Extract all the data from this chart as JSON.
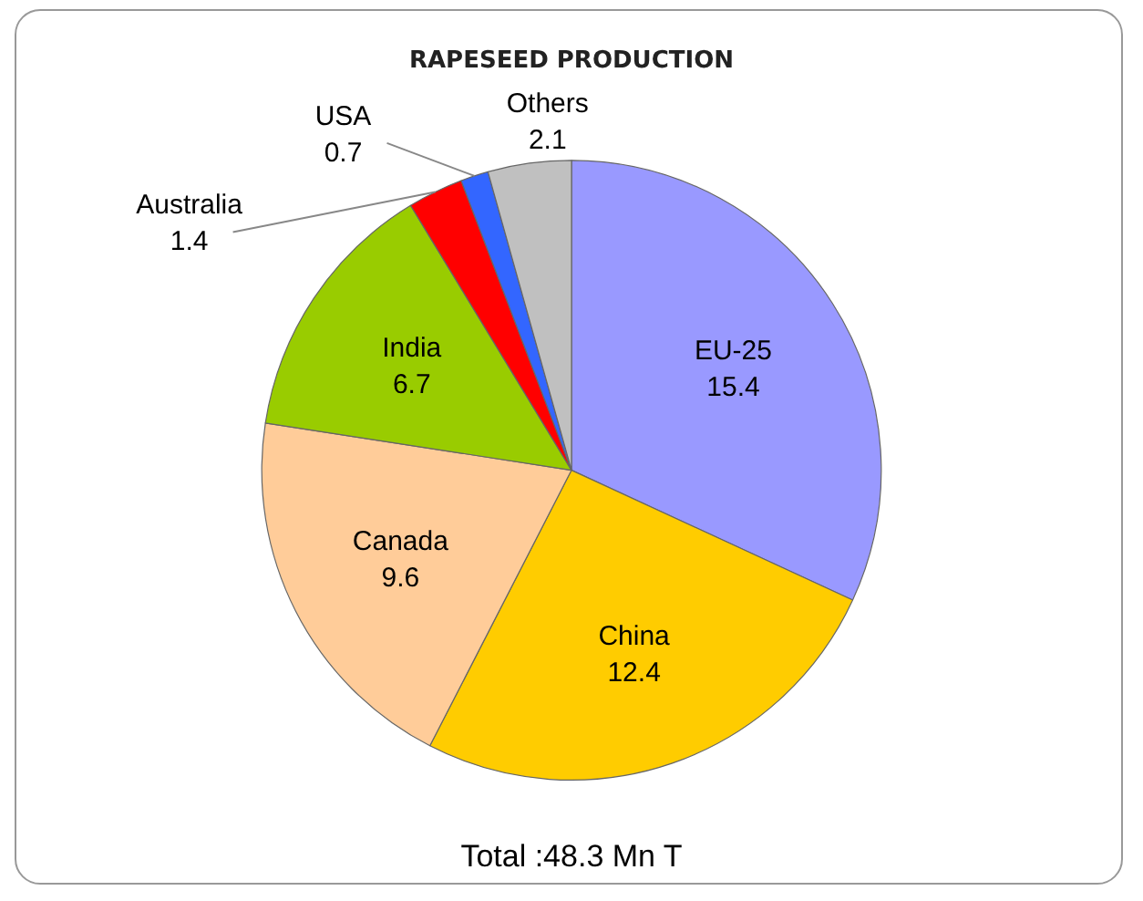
{
  "chart_data": {
    "type": "pie",
    "title": "RAPESEED PRODUCTION",
    "categories": [
      "EU-25",
      "China",
      "Canada",
      "India",
      "Australia",
      "USA",
      "Others"
    ],
    "values": [
      15.4,
      12.4,
      9.6,
      6.7,
      1.4,
      0.7,
      2.1
    ],
    "colors": [
      "#9999ff",
      "#ffcc00",
      "#ffcc99",
      "#99cc00",
      "#ff0000",
      "#3366ff",
      "#c0c0c0"
    ],
    "data_labels": true,
    "legend": false,
    "annotations": [
      "Total :48.3 Mn T"
    ]
  }
}
